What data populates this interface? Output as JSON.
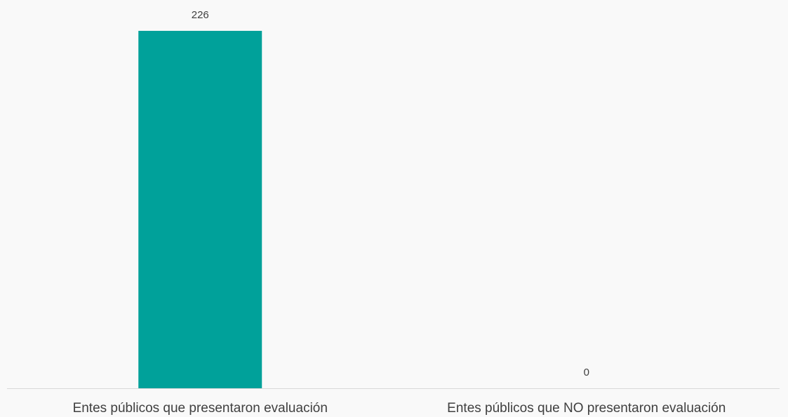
{
  "chart_data": {
    "type": "bar",
    "categories": [
      "Entes públicos que presentaron evaluación",
      "Entes públicos que NO presentaron evaluación"
    ],
    "values": [
      226,
      0
    ],
    "data_labels": [
      "226",
      "0"
    ],
    "title": "",
    "xlabel": "",
    "ylabel": "",
    "ylim": [
      0,
      226
    ],
    "grid": false,
    "legend": "none",
    "y_axis_visible": false
  },
  "colors": {
    "bar": "#00a19a",
    "axis": "#d9d9d9",
    "text": "#404040",
    "background": "#f9f9f9"
  }
}
